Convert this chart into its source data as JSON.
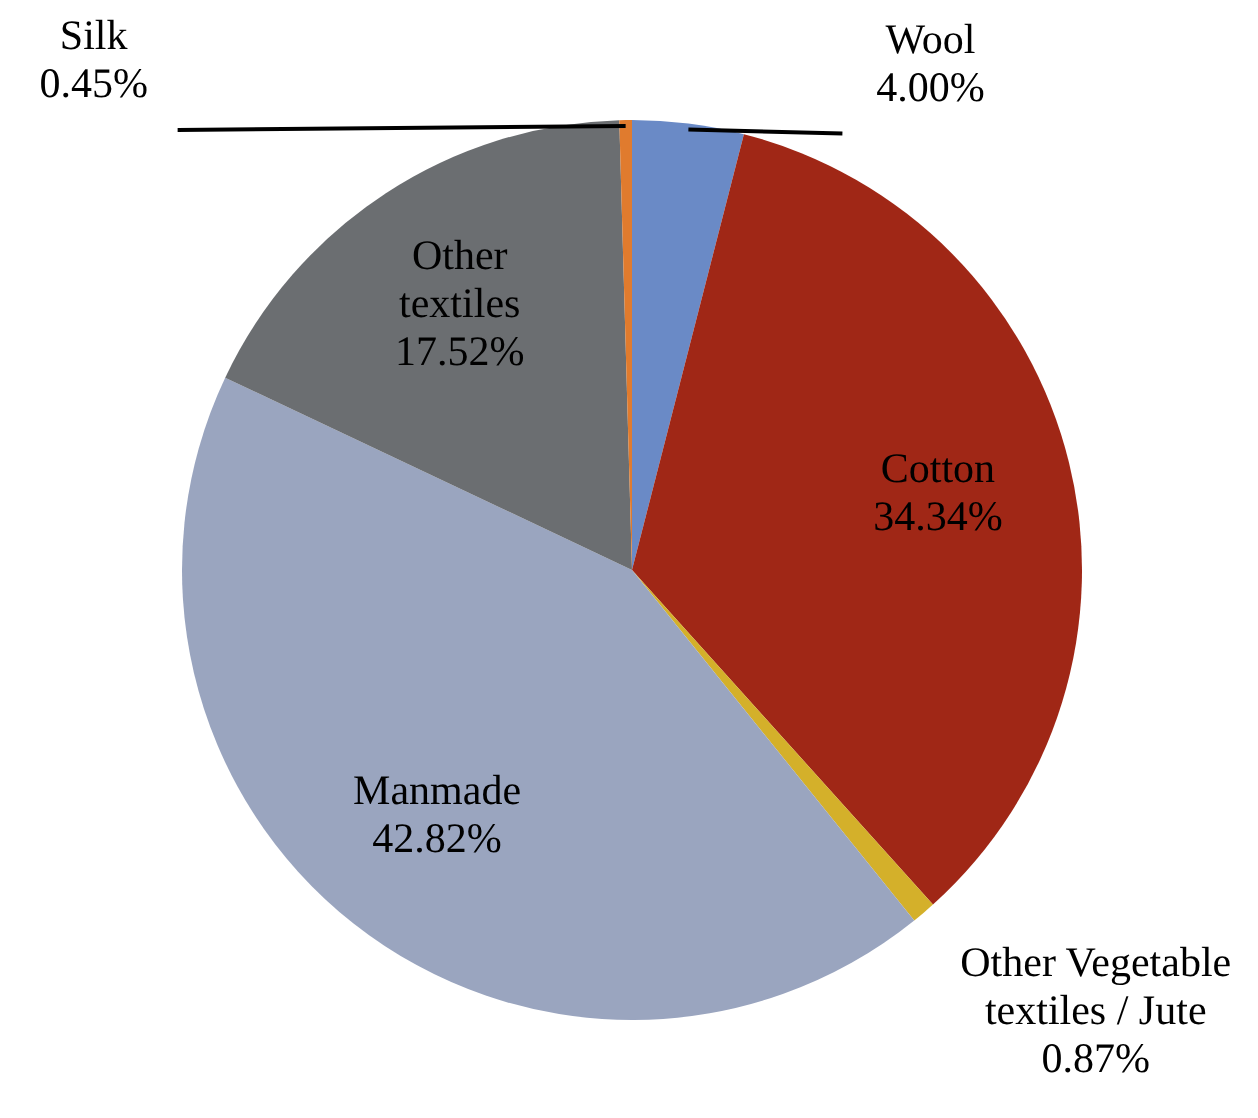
{
  "chart_data": {
    "type": "pie",
    "categories": [
      "Wool",
      "Cotton",
      "Other Vegetable textiles / Jute",
      "Manmade",
      "Other textiles",
      "Silk"
    ],
    "values": [
      4.0,
      34.34,
      0.87,
      42.82,
      17.52,
      0.45
    ],
    "value_labels": [
      "4.00%",
      "34.34%",
      "0.87%",
      "42.82%",
      "17.52%",
      "0.45%"
    ],
    "colors": [
      "#6a8ac6",
      "#a02716",
      "#d4b02a",
      "#9aa5bf",
      "#6b6e71",
      "#e07b2e"
    ],
    "legend": false
  }
}
